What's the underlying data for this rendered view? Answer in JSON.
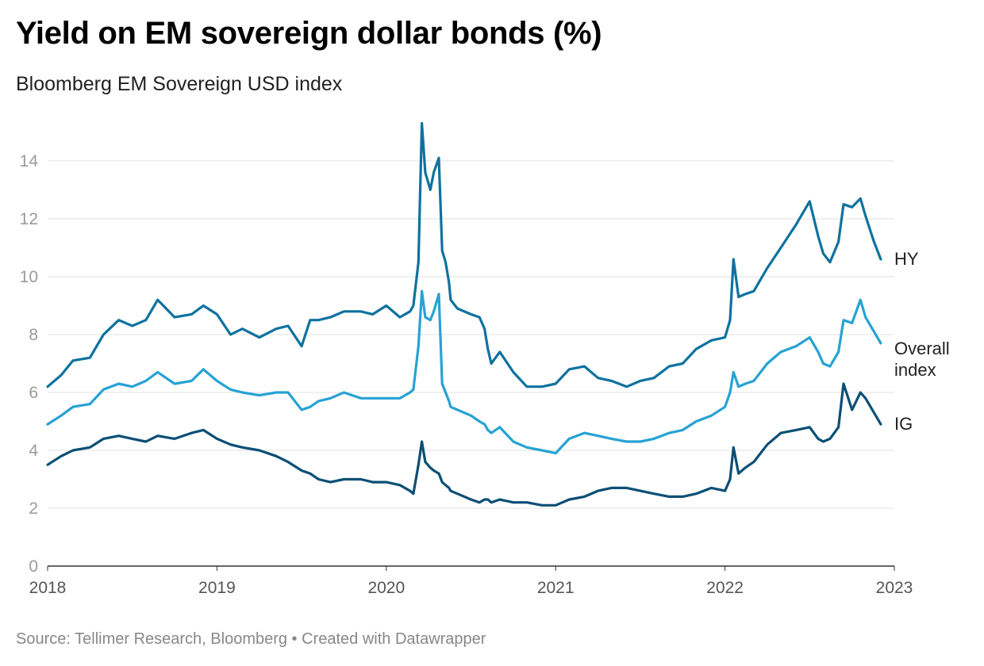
{
  "title": "Yield on EM sovereign dollar bonds (%)",
  "subtitle": "Bloomberg EM Sovereign USD index",
  "footer": "Source: Tellimer Research, Bloomberg • Created with Datawrapper",
  "chart_data": {
    "type": "line",
    "title": "Yield on EM sovereign dollar bonds (%)",
    "subtitle": "Bloomberg EM Sovereign USD index",
    "xlabel": "",
    "ylabel": "",
    "xlim": [
      2018.0,
      2023.0
    ],
    "ylim": [
      0,
      15
    ],
    "y_ticks": [
      0,
      2,
      4,
      6,
      8,
      10,
      12,
      14
    ],
    "x_ticks": [
      2018,
      2019,
      2020,
      2021,
      2022,
      2023
    ],
    "x_tick_labels": [
      "2018",
      "2019",
      "2020",
      "2021",
      "2022",
      "2023"
    ],
    "grid": "horizontal",
    "legend": "inline labels at line ends",
    "series": [
      {
        "name": "HY",
        "label_lines": [
          "HY"
        ],
        "color": "#0e72a0",
        "x": [
          2018.0,
          2018.08,
          2018.15,
          2018.25,
          2018.33,
          2018.42,
          2018.5,
          2018.58,
          2018.65,
          2018.75,
          2018.85,
          2018.92,
          2019.0,
          2019.08,
          2019.15,
          2019.25,
          2019.35,
          2019.42,
          2019.5,
          2019.55,
          2019.6,
          2019.67,
          2019.75,
          2019.85,
          2019.92,
          2020.0,
          2020.08,
          2020.14,
          2020.16,
          2020.19,
          2020.21,
          2020.23,
          2020.26,
          2020.28,
          2020.31,
          2020.33,
          2020.35,
          2020.37,
          2020.38,
          2020.42,
          2020.5,
          2020.55,
          2020.58,
          2020.6,
          2020.62,
          2020.67,
          2020.75,
          2020.83,
          2020.92,
          2021.0,
          2021.08,
          2021.17,
          2021.25,
          2021.33,
          2021.42,
          2021.5,
          2021.58,
          2021.67,
          2021.75,
          2021.83,
          2021.92,
          2022.0,
          2022.03,
          2022.05,
          2022.08,
          2022.12,
          2022.17,
          2022.25,
          2022.33,
          2022.42,
          2022.5,
          2022.55,
          2022.58,
          2022.62,
          2022.67,
          2022.7,
          2022.75,
          2022.8,
          2022.83,
          2022.88,
          2022.92
        ],
        "values": [
          6.2,
          6.6,
          7.1,
          7.2,
          8.0,
          8.5,
          8.3,
          8.5,
          9.2,
          8.6,
          8.7,
          9.0,
          8.7,
          8.0,
          8.2,
          7.9,
          8.2,
          8.3,
          7.6,
          8.5,
          8.5,
          8.6,
          8.8,
          8.8,
          8.7,
          9.0,
          8.6,
          8.8,
          9.0,
          10.5,
          15.3,
          13.6,
          13.0,
          13.6,
          14.1,
          10.9,
          10.5,
          9.8,
          9.2,
          8.9,
          8.7,
          8.6,
          8.2,
          7.5,
          7.0,
          7.4,
          6.7,
          6.2,
          6.2,
          6.3,
          6.8,
          6.9,
          6.5,
          6.4,
          6.2,
          6.4,
          6.5,
          6.9,
          7.0,
          7.5,
          7.8,
          7.9,
          8.5,
          10.6,
          9.3,
          9.4,
          9.5,
          10.3,
          11.0,
          11.8,
          12.6,
          11.4,
          10.8,
          10.5,
          11.2,
          12.5,
          12.4,
          12.7,
          12.1,
          11.2,
          10.6
        ]
      },
      {
        "name": "Overall index",
        "label_lines": [
          "Overall",
          "index"
        ],
        "color": "#27a2d4",
        "x": [
          2018.0,
          2018.08,
          2018.15,
          2018.25,
          2018.33,
          2018.42,
          2018.5,
          2018.58,
          2018.65,
          2018.75,
          2018.85,
          2018.92,
          2019.0,
          2019.08,
          2019.15,
          2019.25,
          2019.35,
          2019.42,
          2019.5,
          2019.55,
          2019.6,
          2019.67,
          2019.75,
          2019.85,
          2019.92,
          2020.0,
          2020.08,
          2020.14,
          2020.16,
          2020.19,
          2020.21,
          2020.23,
          2020.26,
          2020.28,
          2020.31,
          2020.33,
          2020.35,
          2020.37,
          2020.38,
          2020.42,
          2020.5,
          2020.55,
          2020.58,
          2020.6,
          2020.62,
          2020.67,
          2020.75,
          2020.83,
          2020.92,
          2021.0,
          2021.08,
          2021.17,
          2021.25,
          2021.33,
          2021.42,
          2021.5,
          2021.58,
          2021.67,
          2021.75,
          2021.83,
          2021.92,
          2022.0,
          2022.03,
          2022.05,
          2022.08,
          2022.12,
          2022.17,
          2022.25,
          2022.33,
          2022.42,
          2022.5,
          2022.55,
          2022.58,
          2022.62,
          2022.67,
          2022.7,
          2022.75,
          2022.8,
          2022.83,
          2022.88,
          2022.92
        ],
        "values": [
          4.9,
          5.2,
          5.5,
          5.6,
          6.1,
          6.3,
          6.2,
          6.4,
          6.7,
          6.3,
          6.4,
          6.8,
          6.4,
          6.1,
          6.0,
          5.9,
          6.0,
          6.0,
          5.4,
          5.5,
          5.7,
          5.8,
          6.0,
          5.8,
          5.8,
          5.8,
          5.8,
          6.0,
          6.1,
          7.6,
          9.5,
          8.6,
          8.5,
          8.8,
          9.4,
          6.3,
          6.0,
          5.7,
          5.5,
          5.4,
          5.2,
          5.0,
          4.9,
          4.7,
          4.6,
          4.8,
          4.3,
          4.1,
          4.0,
          3.9,
          4.4,
          4.6,
          4.5,
          4.4,
          4.3,
          4.3,
          4.4,
          4.6,
          4.7,
          5.0,
          5.2,
          5.5,
          6.0,
          6.7,
          6.2,
          6.3,
          6.4,
          7.0,
          7.4,
          7.6,
          7.9,
          7.4,
          7.0,
          6.9,
          7.4,
          8.5,
          8.4,
          9.2,
          8.6,
          8.1,
          7.7
        ]
      },
      {
        "name": "IG",
        "label_lines": [
          "IG"
        ],
        "color": "#0b4f75",
        "x": [
          2018.0,
          2018.08,
          2018.15,
          2018.25,
          2018.33,
          2018.42,
          2018.5,
          2018.58,
          2018.65,
          2018.75,
          2018.85,
          2018.92,
          2019.0,
          2019.08,
          2019.15,
          2019.25,
          2019.35,
          2019.42,
          2019.5,
          2019.55,
          2019.6,
          2019.67,
          2019.75,
          2019.85,
          2019.92,
          2020.0,
          2020.08,
          2020.14,
          2020.16,
          2020.19,
          2020.21,
          2020.23,
          2020.26,
          2020.28,
          2020.31,
          2020.33,
          2020.35,
          2020.37,
          2020.38,
          2020.42,
          2020.5,
          2020.55,
          2020.58,
          2020.6,
          2020.62,
          2020.67,
          2020.75,
          2020.83,
          2020.92,
          2021.0,
          2021.08,
          2021.17,
          2021.25,
          2021.33,
          2021.42,
          2021.5,
          2021.58,
          2021.67,
          2021.75,
          2021.83,
          2021.92,
          2022.0,
          2022.03,
          2022.05,
          2022.08,
          2022.12,
          2022.17,
          2022.25,
          2022.33,
          2022.42,
          2022.5,
          2022.55,
          2022.58,
          2022.62,
          2022.67,
          2022.7,
          2022.75,
          2022.8,
          2022.83,
          2022.88,
          2022.92
        ],
        "values": [
          3.5,
          3.8,
          4.0,
          4.1,
          4.4,
          4.5,
          4.4,
          4.3,
          4.5,
          4.4,
          4.6,
          4.7,
          4.4,
          4.2,
          4.1,
          4.0,
          3.8,
          3.6,
          3.3,
          3.2,
          3.0,
          2.9,
          3.0,
          3.0,
          2.9,
          2.9,
          2.8,
          2.6,
          2.5,
          3.5,
          4.3,
          3.6,
          3.4,
          3.3,
          3.2,
          2.9,
          2.8,
          2.7,
          2.6,
          2.5,
          2.3,
          2.2,
          2.3,
          2.3,
          2.2,
          2.3,
          2.2,
          2.2,
          2.1,
          2.1,
          2.3,
          2.4,
          2.6,
          2.7,
          2.7,
          2.6,
          2.5,
          2.4,
          2.4,
          2.5,
          2.7,
          2.6,
          3.0,
          4.1,
          3.2,
          3.4,
          3.6,
          4.2,
          4.6,
          4.7,
          4.8,
          4.4,
          4.3,
          4.4,
          4.8,
          6.3,
          5.4,
          6.0,
          5.8,
          5.3,
          4.9
        ]
      }
    ]
  }
}
